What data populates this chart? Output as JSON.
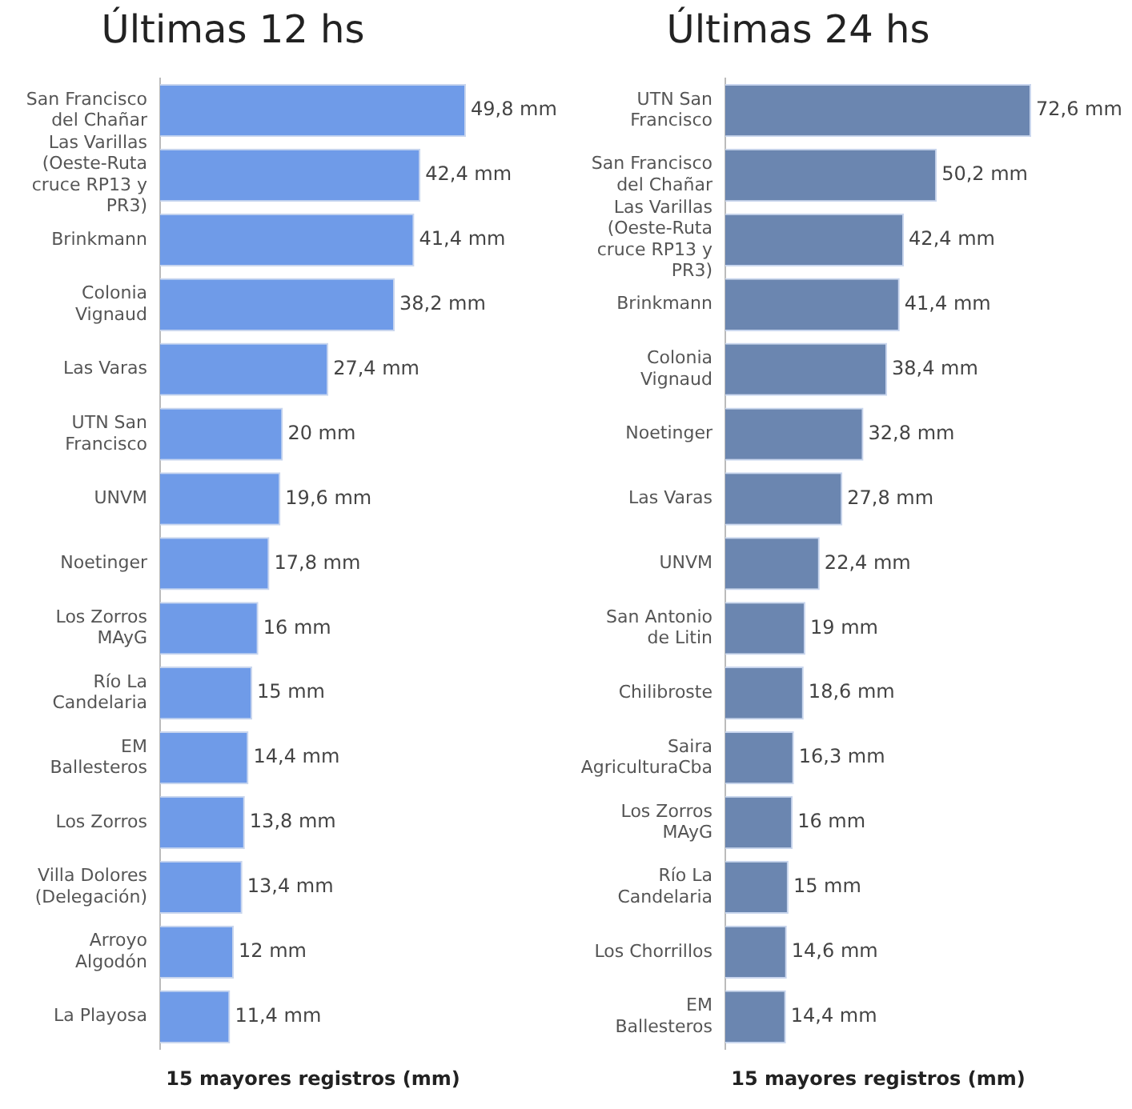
{
  "chart_data": [
    {
      "type": "bar",
      "orientation": "horizontal",
      "title": "Últimas 12 hs",
      "xlabel": "15 mayores registros (mm)",
      "tick_labels": "y",
      "legend": false,
      "categories": [
        "San Francisco del Chañar",
        "Las Varillas (Oeste-Ruta cruce RP13 y PR3)",
        "Brinkmann",
        "Colonia Vignaud",
        "Las Varas",
        "UTN San Francisco",
        "UNVM",
        "Noetinger",
        "Los Zorros MAyG",
        "Río La Candelaria",
        "EM Ballesteros",
        "Los Zorros",
        "Villa Dolores (Delegación)",
        "Arroyo Algodón",
        "La Playosa"
      ],
      "color": "#6f9be8",
      "values": [
        49.8,
        42.4,
        41.4,
        38.2,
        27.4,
        20,
        19.6,
        17.8,
        16,
        15,
        14.4,
        13.8,
        13.4,
        12,
        11.4
      ],
      "value_labels": [
        "49,8 mm",
        "42,4 mm",
        "41,4 mm",
        "38,2 mm",
        "27,4 mm",
        "20 mm",
        "19,6 mm",
        "17,8 mm",
        "16 mm",
        "15 mm",
        "14,4 mm",
        "13,8 mm",
        "13,4 mm",
        "12 mm",
        "11,4 mm"
      ]
    },
    {
      "type": "bar",
      "orientation": "horizontal",
      "title": "Últimas 24 hs",
      "xlabel": "15 mayores registros (mm)",
      "tick_labels": "y",
      "legend": false,
      "categories": [
        "UTN San Francisco",
        "San Francisco del Chañar",
        "Las Varillas (Oeste-Ruta cruce RP13 y PR3)",
        "Brinkmann",
        "Colonia Vignaud",
        "Noetinger",
        "Las Varas",
        "UNVM",
        "San Antonio de Litin",
        "Chilibroste",
        "Saira AgriculturaCba",
        "Los Zorros MAyG",
        "Río La Candelaria",
        "Los Chorrillos",
        "EM Ballesteros"
      ],
      "color": "#6b86b0",
      "values": [
        72.6,
        50.2,
        42.4,
        41.4,
        38.4,
        32.8,
        27.8,
        22.4,
        19,
        18.6,
        16.3,
        16,
        15,
        14.6,
        14.4
      ],
      "value_labels": [
        "72,6 mm",
        "50,2 mm",
        "42,4 mm",
        "41,4 mm",
        "38,4 mm",
        "32,8 mm",
        "27,8 mm",
        "22,4 mm",
        "19 mm",
        "18,6 mm",
        "16,3 mm",
        "16 mm",
        "15 mm",
        "14,6 mm",
        "14,4 mm"
      ]
    }
  ]
}
